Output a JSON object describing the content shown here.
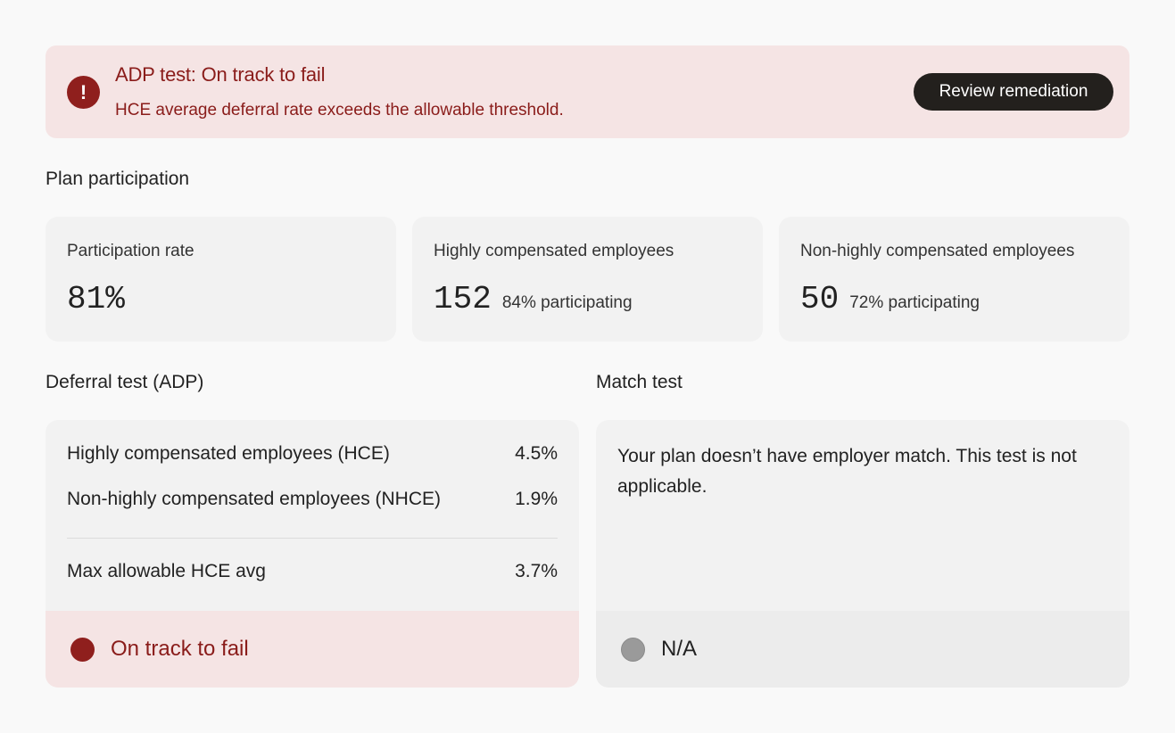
{
  "alert": {
    "title": "ADP test: On track to fail",
    "description": "HCE average deferral rate exceeds the allowable threshold.",
    "icon": "exclamation-icon",
    "icon_glyph": "!",
    "button_label": "Review remediation"
  },
  "plan_participation": {
    "title": "Plan participation",
    "cards": [
      {
        "label": "Participation rate",
        "value": "81%",
        "sub": ""
      },
      {
        "label": "Highly compensated employees",
        "value": "152",
        "sub": "84% participating"
      },
      {
        "label": "Non-highly compensated employees",
        "value": "50",
        "sub": "72% participating"
      }
    ]
  },
  "deferral_test": {
    "title": "Deferral test (ADP)",
    "rows": [
      {
        "label": "Highly compensated employees (HCE)",
        "value": "4.5%"
      },
      {
        "label": "Non-highly compensated employees (NHCE)",
        "value": "1.9%"
      },
      {
        "label": "Max allowable HCE avg",
        "value": "3.7%"
      }
    ],
    "status": "On track to fail"
  },
  "match_test": {
    "title": "Match test",
    "message": "Your plan doesn’t have employer match. This test is not applicable.",
    "status": "N/A"
  },
  "colors": {
    "fail": "#8f1f1d",
    "fail_bg": "#f5e4e4",
    "neutral_dot": "#9a9a9a",
    "button_bg": "#23201d"
  }
}
